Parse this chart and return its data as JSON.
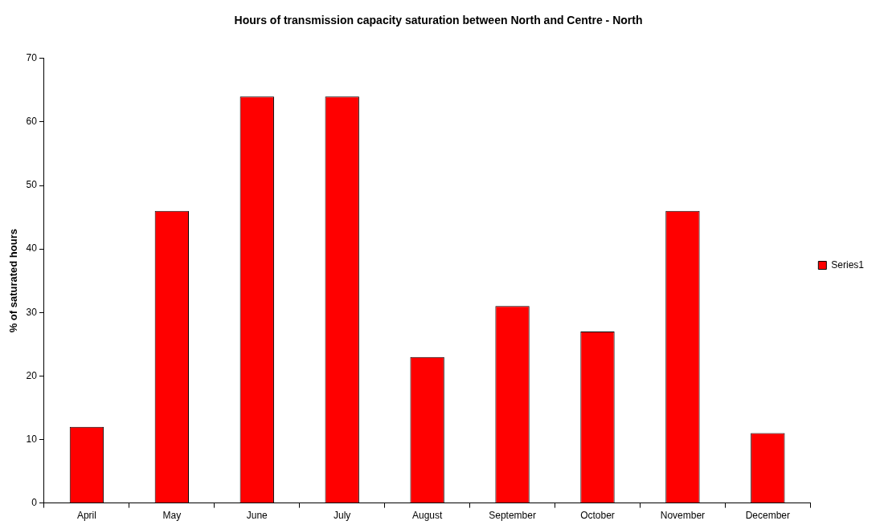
{
  "chart_data": {
    "type": "bar",
    "title": "Hours of transmission capacity saturation between North and Centre - North",
    "ylabel": "% of saturated hours",
    "categories": [
      "April",
      "May",
      "June",
      "July",
      "August",
      "September",
      "October",
      "November",
      "December"
    ],
    "series": [
      {
        "name": "Series1",
        "color": "#ff0000",
        "values": [
          12,
          46,
          64,
          64,
          23,
          31,
          27,
          46,
          11
        ]
      }
    ],
    "ylim": [
      0,
      70
    ],
    "yticks": [
      0,
      10,
      20,
      30,
      40,
      50,
      60,
      70
    ],
    "grid": false,
    "legend": "right"
  }
}
